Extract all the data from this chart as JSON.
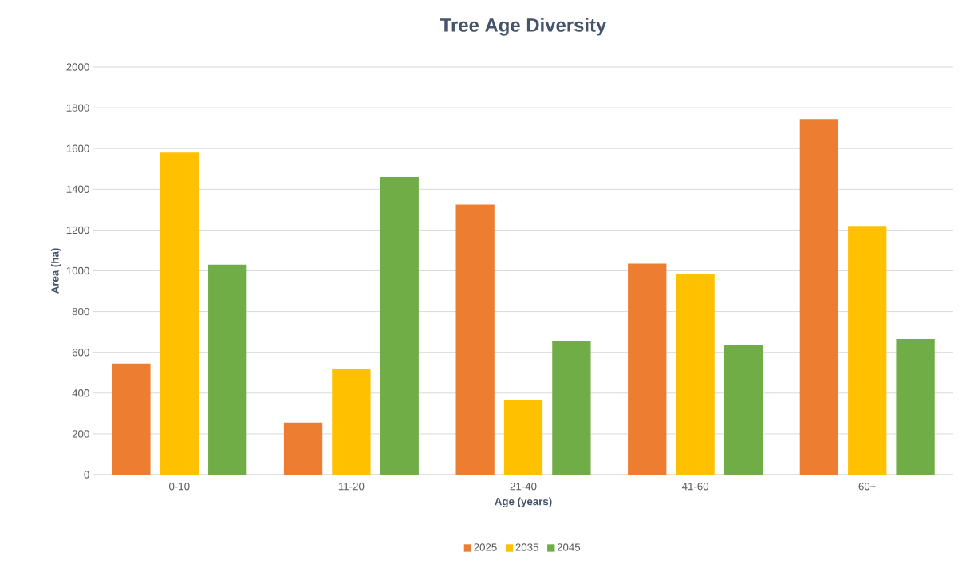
{
  "chart_data": {
    "type": "bar",
    "title": "Tree Age Diversity",
    "xlabel": "Age (years)",
    "ylabel": "Area (ha)",
    "categories": [
      "0-10",
      "11-20",
      "21-40",
      "41-60",
      "60+"
    ],
    "series": [
      {
        "name": "2025",
        "color": "#ed7d31",
        "values": [
          545,
          255,
          1325,
          1035,
          1745
        ]
      },
      {
        "name": "2035",
        "color": "#ffc000",
        "values": [
          1580,
          520,
          365,
          985,
          1220
        ]
      },
      {
        "name": "2045",
        "color": "#70ad47",
        "values": [
          1030,
          1460,
          655,
          635,
          665
        ]
      }
    ],
    "ylim": [
      0,
      2000
    ],
    "yticks": [
      0,
      200,
      400,
      600,
      800,
      1000,
      1200,
      1400,
      1600,
      1800,
      2000
    ],
    "grid": "y",
    "legend": "bottom"
  }
}
